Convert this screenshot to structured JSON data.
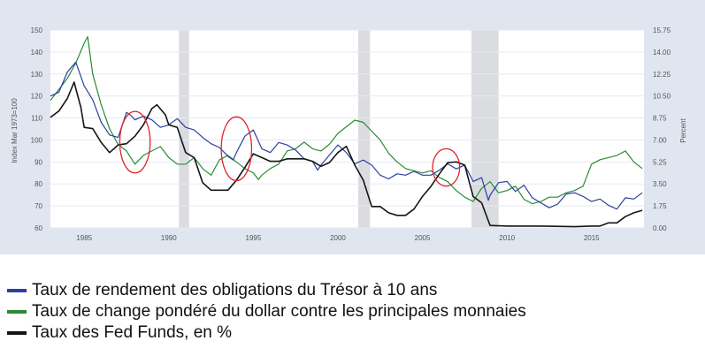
{
  "chart_data": {
    "type": "line",
    "x_range": [
      1983,
      2018.1
    ],
    "left_axis": {
      "label": "Index Mar 1973=100",
      "ylim": [
        60,
        150
      ],
      "ticks": [
        "60",
        "70",
        "80",
        "90",
        "100",
        "110",
        "120",
        "130",
        "140",
        "150"
      ]
    },
    "right_axis": {
      "label": "Percent",
      "ylim": [
        0,
        15.75
      ],
      "ticks": [
        "0.00",
        "1.75",
        "3.50",
        "5.25",
        "7.00",
        "8.75",
        "10.50",
        "12.25",
        "14.00",
        "15.75"
      ]
    },
    "x_ticks": [
      "1985",
      "1990",
      "1995",
      "2000",
      "2005",
      "2010",
      "2015"
    ],
    "recessions": [
      [
        1990.6,
        1991.2
      ],
      [
        2001.2,
        2001.9
      ],
      [
        2007.9,
        2009.5
      ]
    ],
    "annotations": [
      {
        "type": "ellipse",
        "x": 1988.0,
        "y": 99,
        "rx": 0.9,
        "ry": 14
      },
      {
        "type": "ellipse",
        "x": 1994.0,
        "y": 96,
        "rx": 0.9,
        "ry": 14.5
      },
      {
        "type": "ellipse",
        "x": 2006.4,
        "y": 87.5,
        "rx": 0.8,
        "ry": 8.5
      }
    ],
    "series": [
      {
        "name": "Taux de rendement des obligations du Trésor à 10 ans",
        "axis": "right",
        "color": "#2d3f9e",
        "x": [
          1983,
          1983.5,
          1984,
          1984.5,
          1985,
          1985.5,
          1986,
          1986.5,
          1987,
          1987.5,
          1987.8,
          1988,
          1988.5,
          1989,
          1989.5,
          1990,
          1990.5,
          1991,
          1991.5,
          1992,
          1992.5,
          1993,
          1993.5,
          1993.8,
          1994,
          1994.5,
          1995,
          1995.5,
          1996,
          1996.5,
          1997,
          1997.5,
          1998,
          1998.5,
          1998.8,
          1999,
          1999.5,
          2000,
          2000.5,
          2001,
          2001.5,
          2002,
          2002.5,
          2003,
          2003.5,
          2004,
          2004.5,
          2005,
          2005.5,
          2006,
          2006.5,
          2007,
          2007.5,
          2008,
          2008.5,
          2008.9,
          2009,
          2009.5,
          2010,
          2010.5,
          2011,
          2011.5,
          2012,
          2012.5,
          2013,
          2013.5,
          2014,
          2014.5,
          2015,
          2015.5,
          2016,
          2016.5,
          2017,
          2017.5,
          2018
        ],
        "values": [
          10.5,
          10.8,
          12.4,
          13.2,
          11.3,
          10.2,
          8.4,
          7.4,
          7.2,
          9.2,
          8.9,
          8.6,
          8.9,
          8.6,
          8.0,
          8.2,
          8.7,
          8.0,
          7.8,
          7.2,
          6.7,
          6.4,
          5.7,
          5.4,
          6.0,
          7.3,
          7.8,
          6.3,
          6.0,
          6.8,
          6.6,
          6.2,
          5.5,
          5.3,
          4.6,
          5.0,
          5.8,
          6.6,
          6.0,
          5.1,
          5.4,
          5.0,
          4.2,
          3.9,
          4.3,
          4.2,
          4.5,
          4.2,
          4.2,
          4.6,
          5.1,
          4.7,
          5.0,
          3.7,
          4.0,
          2.2,
          2.6,
          3.6,
          3.7,
          2.9,
          3.4,
          2.4,
          2.0,
          1.6,
          1.9,
          2.7,
          2.8,
          2.5,
          2.1,
          2.3,
          1.8,
          1.5,
          2.4,
          2.3,
          2.8
        ]
      },
      {
        "name": "Taux de change pondéré du dollar contre les principales monnaies",
        "axis": "left",
        "color": "#2a8a36",
        "x": [
          1983,
          1983.5,
          1984,
          1984.5,
          1985,
          1985.2,
          1985.5,
          1986,
          1986.5,
          1987,
          1987.5,
          1988,
          1988.5,
          1989,
          1989.5,
          1990,
          1990.5,
          1991,
          1991.5,
          1992,
          1992.5,
          1993,
          1993.5,
          1994,
          1994.5,
          1995,
          1995.3,
          1995.5,
          1996,
          1996.5,
          1997,
          1997.5,
          1998,
          1998.5,
          1999,
          1999.5,
          2000,
          2000.5,
          2001,
          2001.5,
          2002,
          2002.5,
          2003,
          2003.5,
          2004,
          2004.5,
          2005,
          2005.5,
          2006,
          2006.5,
          2007,
          2007.5,
          2008,
          2008.5,
          2009,
          2009.5,
          2010,
          2010.5,
          2011,
          2011.5,
          2012,
          2012.5,
          2013,
          2013.5,
          2014,
          2014.5,
          2015,
          2015.5,
          2016,
          2016.5,
          2017,
          2017.5,
          2018
        ],
        "values": [
          118,
          123,
          128,
          135,
          144,
          147,
          130,
          116,
          105,
          98,
          95,
          89,
          93,
          95,
          97,
          92,
          89,
          89,
          92,
          87,
          84,
          91,
          93,
          90,
          87,
          85,
          82,
          84,
          87,
          89,
          95,
          96,
          99,
          96,
          95,
          98,
          103,
          106,
          109,
          108,
          104,
          100,
          94,
          90,
          87,
          86,
          85,
          86,
          83,
          81,
          77,
          74,
          72,
          78,
          81,
          76,
          77,
          79,
          73,
          71,
          72,
          74,
          74,
          76,
          77,
          79,
          89,
          91,
          92,
          93,
          95,
          90,
          87
        ]
      },
      {
        "name": "Taux des Fed Funds, en %",
        "axis": "right",
        "color": "#151515",
        "x": [
          1983,
          1983.5,
          1984,
          1984.4,
          1984.8,
          1985,
          1985.5,
          1986,
          1986.5,
          1987,
          1987.5,
          1988,
          1988.5,
          1989,
          1989.3,
          1989.8,
          1990,
          1990.5,
          1991,
          1991.5,
          1992,
          1992.5,
          1993,
          1993.5,
          1994,
          1994.5,
          1995,
          1995.5,
          1996,
          1996.5,
          1997,
          1997.5,
          1998,
          1998.5,
          1999,
          1999.5,
          2000,
          2000.5,
          2001,
          2001.5,
          2002,
          2002.5,
          2003,
          2003.5,
          2004,
          2004.5,
          2005,
          2005.5,
          2006,
          2006.5,
          2007,
          2007.5,
          2008,
          2008.5,
          2009,
          2010,
          2012,
          2014,
          2015,
          2015.5,
          2016,
          2016.5,
          2017,
          2017.5,
          2018
        ],
        "values": [
          8.8,
          9.3,
          10.3,
          11.6,
          9.6,
          8.0,
          7.9,
          6.8,
          6.0,
          6.6,
          6.7,
          7.3,
          8.2,
          9.5,
          9.8,
          9.0,
          8.2,
          8.0,
          6.0,
          5.6,
          3.6,
          3.0,
          3.0,
          3.0,
          3.8,
          4.8,
          5.9,
          5.6,
          5.3,
          5.3,
          5.5,
          5.5,
          5.5,
          5.3,
          4.9,
          5.2,
          6.0,
          6.5,
          5.0,
          3.8,
          1.7,
          1.7,
          1.2,
          1.0,
          1.0,
          1.5,
          2.5,
          3.3,
          4.3,
          5.2,
          5.25,
          5.0,
          2.5,
          2.0,
          0.2,
          0.15,
          0.15,
          0.1,
          0.15,
          0.15,
          0.4,
          0.4,
          0.9,
          1.2,
          1.4
        ]
      }
    ]
  }
}
